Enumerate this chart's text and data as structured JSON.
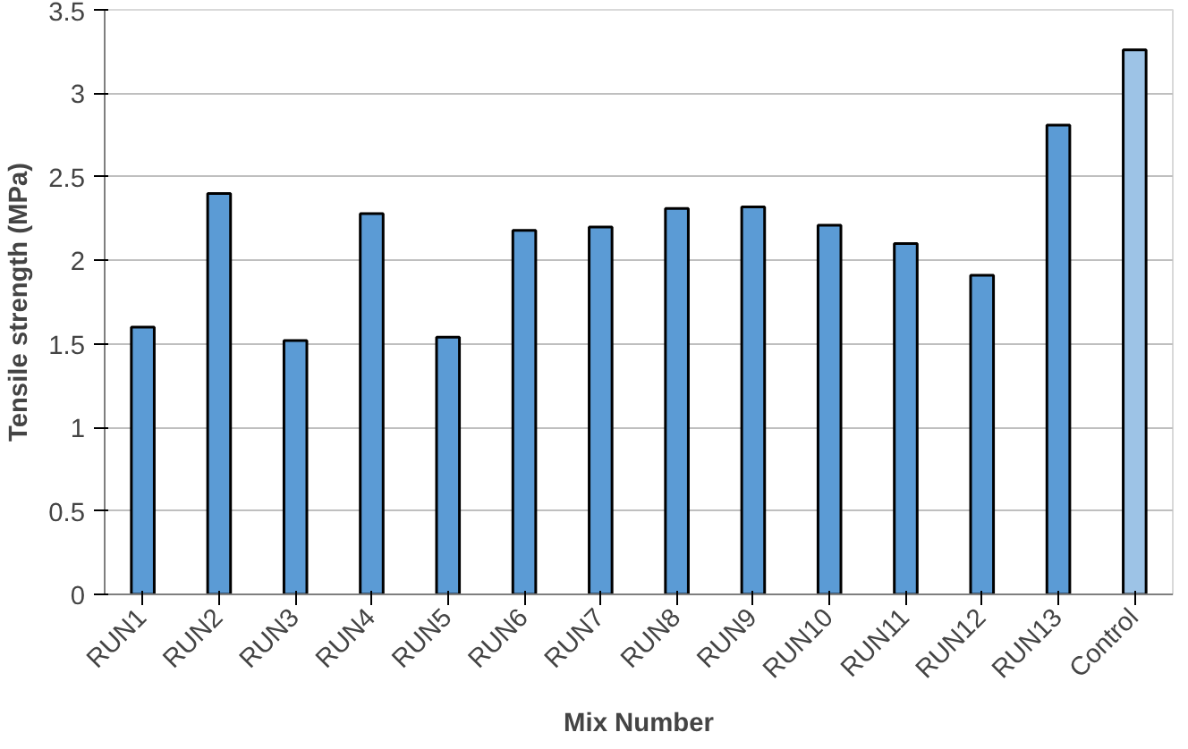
{
  "chart_data": {
    "type": "bar",
    "xlabel": "Mix Number",
    "ylabel": "Tensile strength (MPa)",
    "categories": [
      "RUN1",
      "RUN2",
      "RUN3",
      "RUN4",
      "RUN5",
      "RUN6",
      "RUN7",
      "RUN8",
      "RUN9",
      "RUN10",
      "RUN11",
      "RUN12",
      "RUN13",
      "Control"
    ],
    "values": [
      1.6,
      2.4,
      1.52,
      2.28,
      1.54,
      2.18,
      2.2,
      2.31,
      2.32,
      2.21,
      2.1,
      1.91,
      2.81,
      3.26
    ],
    "colors": [
      "#5b9bd5",
      "#5b9bd5",
      "#5b9bd5",
      "#5b9bd5",
      "#5b9bd5",
      "#5b9bd5",
      "#5b9bd5",
      "#5b9bd5",
      "#5b9bd5",
      "#5b9bd5",
      "#5b9bd5",
      "#5b9bd5",
      "#5b9bd5",
      "#9dc3e6"
    ],
    "ylim": [
      0,
      3.5
    ],
    "yticks": [
      0,
      0.5,
      1,
      1.5,
      2,
      2.5,
      3,
      3.5
    ],
    "grid": "y"
  }
}
